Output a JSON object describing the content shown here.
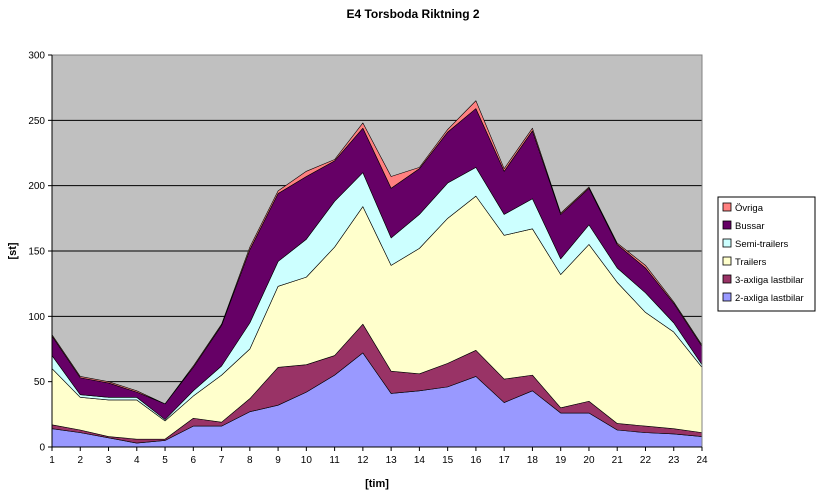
{
  "chart_data": {
    "type": "area",
    "stacked": true,
    "title": "E4 Torsboda Riktning 2",
    "xlabel": "[tim]",
    "ylabel": "[st]",
    "x": [
      1,
      2,
      3,
      4,
      5,
      6,
      7,
      8,
      9,
      10,
      11,
      12,
      13,
      14,
      15,
      16,
      17,
      18,
      19,
      20,
      21,
      22,
      23,
      24
    ],
    "ylim": [
      0,
      300
    ],
    "yticks": [
      0,
      50,
      100,
      150,
      200,
      250,
      300
    ],
    "grid": "horizontal",
    "legend_position": "right",
    "plot_background": "#C0C0C0",
    "series": [
      {
        "name": "2-axliga lastbilar",
        "color": "#9999FF",
        "values": [
          14,
          11,
          7,
          3,
          5,
          16,
          16,
          27,
          32,
          42,
          55,
          72,
          41,
          43,
          46,
          54,
          34,
          43,
          26,
          26,
          13,
          11,
          10,
          8
        ]
      },
      {
        "name": "3-axliga lastbilar",
        "color": "#993366",
        "values": [
          3,
          2,
          1,
          3,
          1,
          6,
          3,
          10,
          29,
          21,
          15,
          22,
          17,
          13,
          18,
          20,
          18,
          12,
          4,
          9,
          5,
          5,
          4,
          3
        ]
      },
      {
        "name": "Trailers",
        "color": "#FFFFCC",
        "values": [
          43,
          25,
          28,
          30,
          14,
          17,
          36,
          38,
          62,
          67,
          83,
          90,
          81,
          96,
          111,
          118,
          110,
          112,
          102,
          120,
          108,
          87,
          74,
          50
        ]
      },
      {
        "name": "Semi-trailers",
        "color": "#CCFFFF",
        "values": [
          10,
          2,
          2,
          2,
          1,
          4,
          7,
          20,
          19,
          29,
          35,
          26,
          21,
          26,
          27,
          22,
          16,
          23,
          12,
          15,
          11,
          15,
          7,
          2
        ]
      },
      {
        "name": "Bussar",
        "color": "#660066",
        "values": [
          15,
          13,
          11,
          4,
          12,
          18,
          31,
          56,
          52,
          48,
          31,
          34,
          38,
          35,
          39,
          45,
          33,
          52,
          34,
          28,
          18,
          19,
          15,
          14
        ]
      },
      {
        "name": "Övriga",
        "color": "#FF8080",
        "values": [
          1,
          1,
          1,
          1,
          0,
          1,
          1,
          2,
          2,
          4,
          1,
          4,
          9,
          1,
          2,
          6,
          2,
          2,
          1,
          1,
          1,
          2,
          1,
          1
        ]
      }
    ]
  }
}
